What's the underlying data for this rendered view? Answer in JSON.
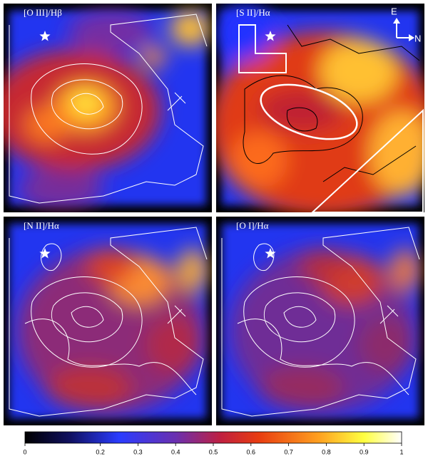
{
  "panels": [
    {
      "label": "[O III]/Hβ"
    },
    {
      "label": "[S II]/Hα"
    },
    {
      "label": "[N II]/Hα"
    },
    {
      "label": "[O I]/Hα"
    }
  ],
  "compass": {
    "east": "E",
    "north": "N"
  },
  "chart_data": {
    "type": "colorbar",
    "xlim": [
      0,
      1
    ],
    "xticks": [
      0,
      0.2,
      0.3,
      0.4,
      0.5,
      0.6,
      0.7,
      0.8,
      0.9,
      1
    ]
  }
}
